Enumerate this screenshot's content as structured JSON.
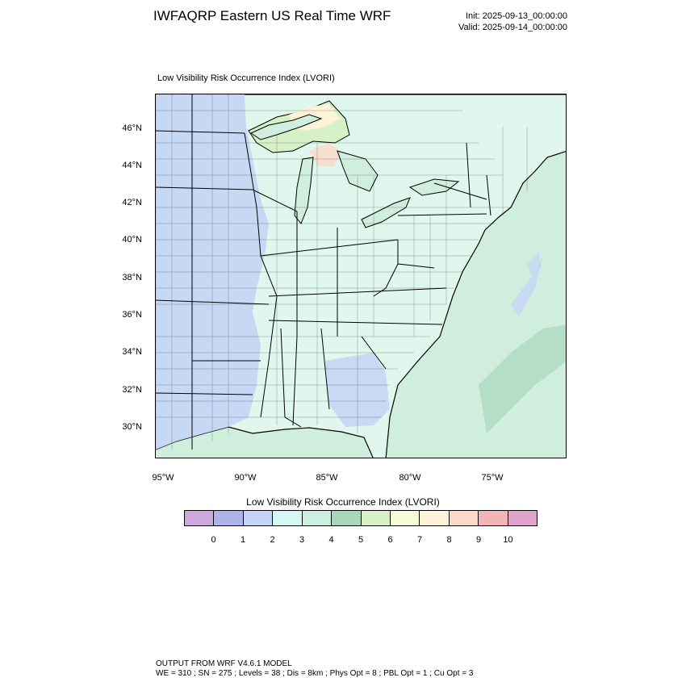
{
  "header": {
    "title": "IWFAQRP Eastern US Real Time WRF",
    "init": "Init: 2025-09-13_00:00:00",
    "valid": "Valid: 2025-09-14_00:00:00"
  },
  "map": {
    "title": "Low Visibility Risk Occurrence Index   (LVORI)",
    "lat_labels": [
      "46°N",
      "44°N",
      "42°N",
      "40°N",
      "38°N",
      "36°N",
      "34°N",
      "32°N",
      "30°N"
    ],
    "lon_labels": [
      "95°W",
      "90°W",
      "85°W",
      "80°W",
      "75°W"
    ],
    "background_color": "#cfeedd",
    "land_color": "#dff7ec",
    "water_color": "#cfeedd"
  },
  "colorbar": {
    "title": "Low Visibility Risk Occurrence Index  (LVORI)",
    "colors": [
      "#cca8dc",
      "#aeb3ec",
      "#c4d4f6",
      "#d6f8f4",
      "#ccf0e0",
      "#a8d8bc",
      "#d6f0c8",
      "#f6fcd6",
      "#fff2d8",
      "#fcd8c8",
      "#f2b4b4",
      "#dea4cc"
    ],
    "labels": [
      "0",
      "1",
      "2",
      "3",
      "4",
      "5",
      "6",
      "7",
      "8",
      "9",
      "10"
    ]
  },
  "footer": {
    "line1": "OUTPUT FROM WRF V4.6.1 MODEL",
    "line2": "WE = 310 ; SN = 275 ; Levels = 38 ; Dis = 8km ; Phys Opt = 8 ; PBL Opt = 1 ; Cu Opt = 3"
  }
}
